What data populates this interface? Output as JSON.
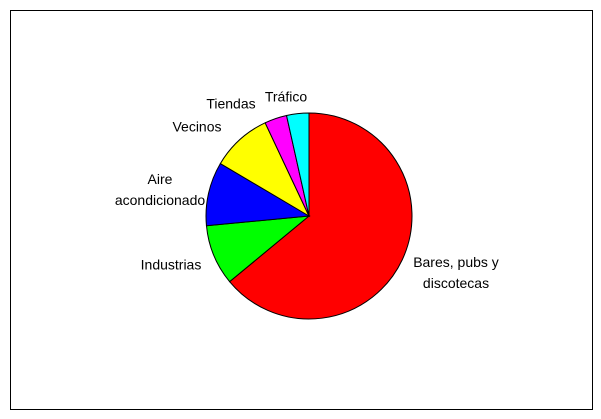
{
  "chart_data": {
    "type": "pie",
    "categories": [
      "Bares, pubs y discotecas",
      "Industrias",
      "Aire acondicionado",
      "Vecinos",
      "Tiendas",
      "Tráfico"
    ],
    "values": [
      64,
      9.5,
      10,
      9.5,
      3.5,
      3.5
    ],
    "colors": [
      "#ff0000",
      "#00ff00",
      "#0000ff",
      "#ffff00",
      "#ff00ff",
      "#00ffff"
    ]
  }
}
